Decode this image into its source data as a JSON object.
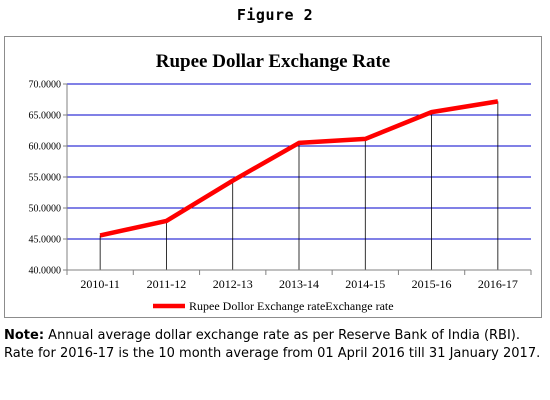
{
  "figure_label": "Figure 2",
  "note": {
    "label": "Note:",
    "text": " Annual average dollar exchange rate as per Reserve Bank of India (RBI). Rate for 2016-17 is the 10 month average from 01 April 2016 till 31 January 2017."
  },
  "colors": {
    "line": "#ff0000",
    "grid": "#0000cc",
    "axis": "#808080",
    "border": "#8c8c8c"
  },
  "chart_data": {
    "type": "line",
    "title": "Rupee Dollar Exchange Rate",
    "xlabel": "",
    "ylabel": "",
    "categories": [
      "2010-11",
      "2011-12",
      "2012-13",
      "2013-14",
      "2014-15",
      "2015-16",
      "2016-17"
    ],
    "series": [
      {
        "name": "Rupee Dollor Exchange rateExchange rate",
        "values": [
          45.58,
          47.92,
          54.41,
          60.5,
          61.14,
          65.46,
          67.2
        ]
      }
    ],
    "ylim": [
      40,
      70
    ],
    "yticks": [
      "40.0000",
      "45.0000",
      "50.0000",
      "55.0000",
      "60.0000",
      "65.0000",
      "70.0000"
    ],
    "grid": true,
    "legend_position": "bottom"
  }
}
